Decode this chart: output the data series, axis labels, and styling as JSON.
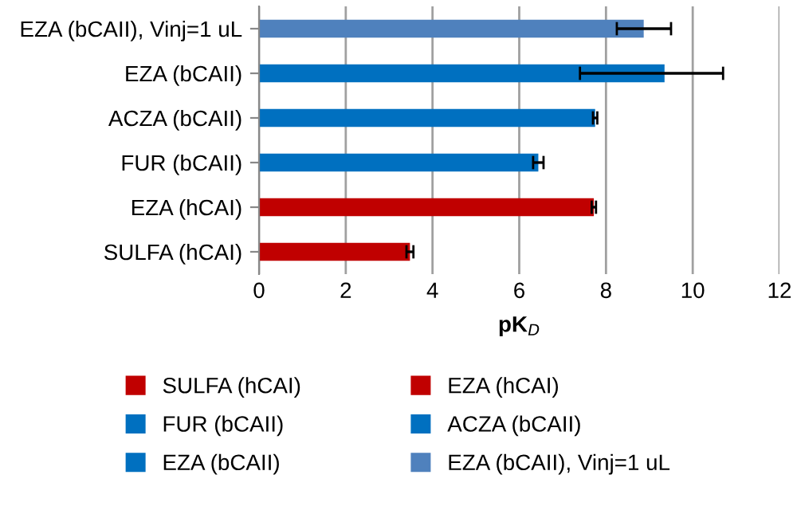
{
  "chart_data": {
    "type": "bar",
    "orientation": "horizontal",
    "xlabel": "pK$_{D}$",
    "categories": [
      "EZA (bCAII), Vinj=1 uL",
      "EZA (bCAII)",
      "ACZA (bCAII)",
      "FUR (bCAII)",
      "EZA (hCAI)",
      "SULFA (hCAI)"
    ],
    "series": [
      {
        "name": "SULFA (hCAI)",
        "color": "#c00000",
        "values": [
          null,
          null,
          null,
          null,
          null,
          3.48
        ],
        "errors": [
          null,
          null,
          null,
          null,
          null,
          0.08
        ]
      },
      {
        "name": "EZA (hCAI)",
        "color": "#c00000",
        "values": [
          null,
          null,
          null,
          null,
          7.72,
          null
        ],
        "errors": [
          null,
          null,
          null,
          null,
          0.05,
          null
        ]
      },
      {
        "name": "FUR (bCAII)",
        "color": "#0070c0",
        "values": [
          null,
          null,
          null,
          6.44,
          null,
          null
        ],
        "errors": [
          null,
          null,
          null,
          0.12,
          null,
          null
        ]
      },
      {
        "name": "ACZA (bCAII)",
        "color": "#0070c0",
        "values": [
          null,
          null,
          7.75,
          null,
          null,
          null
        ],
        "errors": [
          null,
          null,
          0.05,
          null,
          null,
          null
        ]
      },
      {
        "name": "EZA (bCAII)",
        "color": "#0070c0",
        "values": [
          null,
          9.35,
          null,
          null,
          null,
          null
        ],
        "errors": [
          null,
          [
            7.4,
            10.7
          ],
          null,
          null,
          null,
          null
        ]
      },
      {
        "name": "EZA (bCAII), Vinj=1 uL",
        "color": "#4f81bd",
        "values": [
          8.87,
          null,
          null,
          null,
          null,
          null
        ],
        "errors": [
          [
            8.25,
            9.5
          ],
          null,
          null,
          null,
          null,
          null
        ]
      }
    ],
    "xlim": [
      0,
      12
    ],
    "xticks": [
      0,
      2,
      4,
      6,
      8,
      10,
      12
    ],
    "grid": "x",
    "legend": "bottom"
  }
}
